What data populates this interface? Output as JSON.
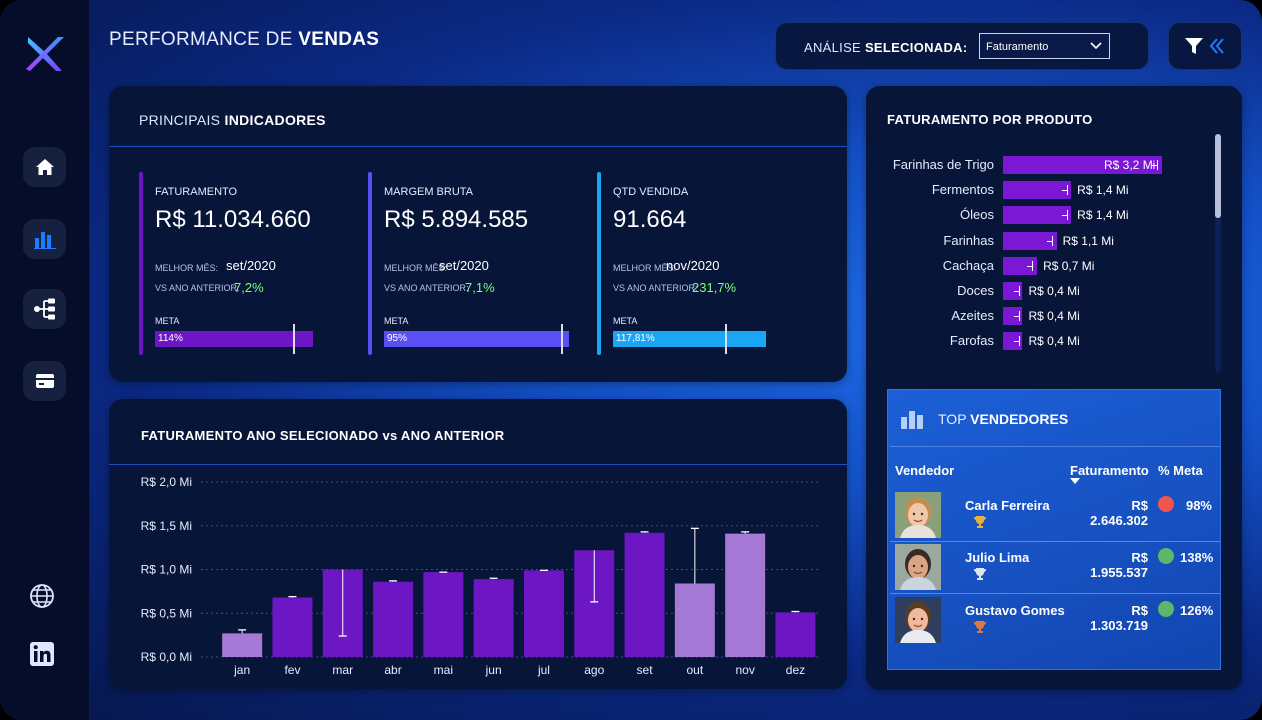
{
  "page": {
    "title_light": "PERFORMANCE DE ",
    "title_bold": "VENDAS"
  },
  "analysis": {
    "label_light": "ANÁLISE ",
    "label_bold": "SELECIONADA:",
    "selected": "Faturamento"
  },
  "sidebar": {
    "items": [
      "home-icon",
      "bar-chart-icon",
      "hierarchy-icon",
      "card-icon",
      "globe-icon",
      "linkedin-icon"
    ]
  },
  "indicators": {
    "title_light": "PRINCIPAIS ",
    "title_bold": "INDICADORES",
    "kpis": [
      {
        "name": "FATURAMENTO",
        "value": "R$ 11.034.660",
        "best_label": "MELHOR MÊS:",
        "best": "set/2020",
        "vs_label": "VS ANO ANTERIOR:",
        "vs": "7,2%",
        "meta_label": "META",
        "meta": "114%",
        "meta_fraction": 1.14,
        "color": "#6c16c4"
      },
      {
        "name": "MARGEM BRUTA",
        "value": "R$ 5.894.585",
        "best_label": "MELHOR MÊS:",
        "best": "set/2020",
        "vs_label": "VS ANO ANTERIOR:",
        "vs": "7,1%",
        "meta_label": "META",
        "meta": "95%",
        "meta_fraction": 0.95,
        "color": "#5b4ef2"
      },
      {
        "name": "QTD VENDIDA",
        "value": "91.664",
        "best_label": "MELHOR MÊS:",
        "best": "nov/2020",
        "vs_label": "VS ANO ANTERIOR:",
        "vs": "231,7%",
        "meta_label": "META",
        "meta": "117,81%",
        "meta_fraction": 1.1781,
        "color": "#1aa6f5"
      }
    ]
  },
  "monthly": {
    "title": "FATURAMENTO ANO SELECIONADO vs ANO ANTERIOR"
  },
  "products": {
    "title": "FATURAMENTO POR PRODUTO"
  },
  "top_sellers": {
    "title_light": "TOP ",
    "title_bold": "VENDEDORES",
    "col_seller": "Vendedor",
    "col_revenue": "Faturamento",
    "col_meta": "% Meta",
    "rows": [
      {
        "name": "Carla Ferreira",
        "revenue": "R$ 2.646.302",
        "meta": "98%",
        "status_color": "#f0564f",
        "trophy": "gold"
      },
      {
        "name": "Julio Lima",
        "revenue": "R$ 1.955.537",
        "meta": "138%",
        "status_color": "#5bb86a",
        "trophy": "silver"
      },
      {
        "name": "Gustavo Gomes",
        "revenue": "R$ 1.303.719",
        "meta": "126%",
        "status_color": "#5bb86a",
        "trophy": "bronze"
      }
    ]
  },
  "chart_data": [
    {
      "type": "bar",
      "title": "FATURAMENTO ANO SELECIONADO vs ANO ANTERIOR",
      "categories": [
        "jan",
        "fev",
        "mar",
        "abr",
        "mai",
        "jun",
        "jul",
        "ago",
        "set",
        "out",
        "nov",
        "dez"
      ],
      "values": [
        0.27,
        0.68,
        1.0,
        0.86,
        0.97,
        0.89,
        0.99,
        1.22,
        1.42,
        0.84,
        1.41,
        0.51
      ],
      "previous_year": [
        0.31,
        0.69,
        0.24,
        0.87,
        0.97,
        0.9,
        0.99,
        0.63,
        1.43,
        1.47,
        1.43,
        0.52
      ],
      "highlight_months": [
        "jan",
        "out",
        "nov"
      ],
      "y_ticks": [
        "R$ 0,0 Mi",
        "R$ 0,5 Mi",
        "R$ 1,0 Mi",
        "R$ 1,5 Mi",
        "R$ 2,0 Mi"
      ],
      "ylim": [
        0,
        2.0
      ],
      "grid": true,
      "colors": {
        "bar": "#6c16c4",
        "highlight": "#a57ad6",
        "marker": "#ffffff"
      }
    },
    {
      "type": "bar",
      "orientation": "horizontal",
      "title": "FATURAMENTO POR PRODUTO",
      "categories": [
        "Farinhas de Trigo",
        "Fermentos",
        "Óleos",
        "Farinhas",
        "Cachaça",
        "Doces",
        "Azeites",
        "Farofas"
      ],
      "values": [
        3.2,
        1.4,
        1.4,
        1.1,
        0.7,
        0.4,
        0.4,
        0.4
      ],
      "labels": [
        "R$ 3,2 Mi",
        "R$ 1,4 Mi",
        "R$ 1,4 Mi",
        "R$ 1,1 Mi",
        "R$ 0,7 Mi",
        "R$ 0,4 Mi",
        "R$ 0,4 Mi",
        "R$ 0,4 Mi"
      ],
      "previous_year": [
        3.15,
        1.35,
        1.35,
        1.05,
        0.65,
        0.38,
        0.38,
        0.38
      ],
      "xlim": [
        0,
        3.2
      ],
      "colors": {
        "bar": "#7b18d6",
        "marker": "#ffffff"
      }
    }
  ]
}
